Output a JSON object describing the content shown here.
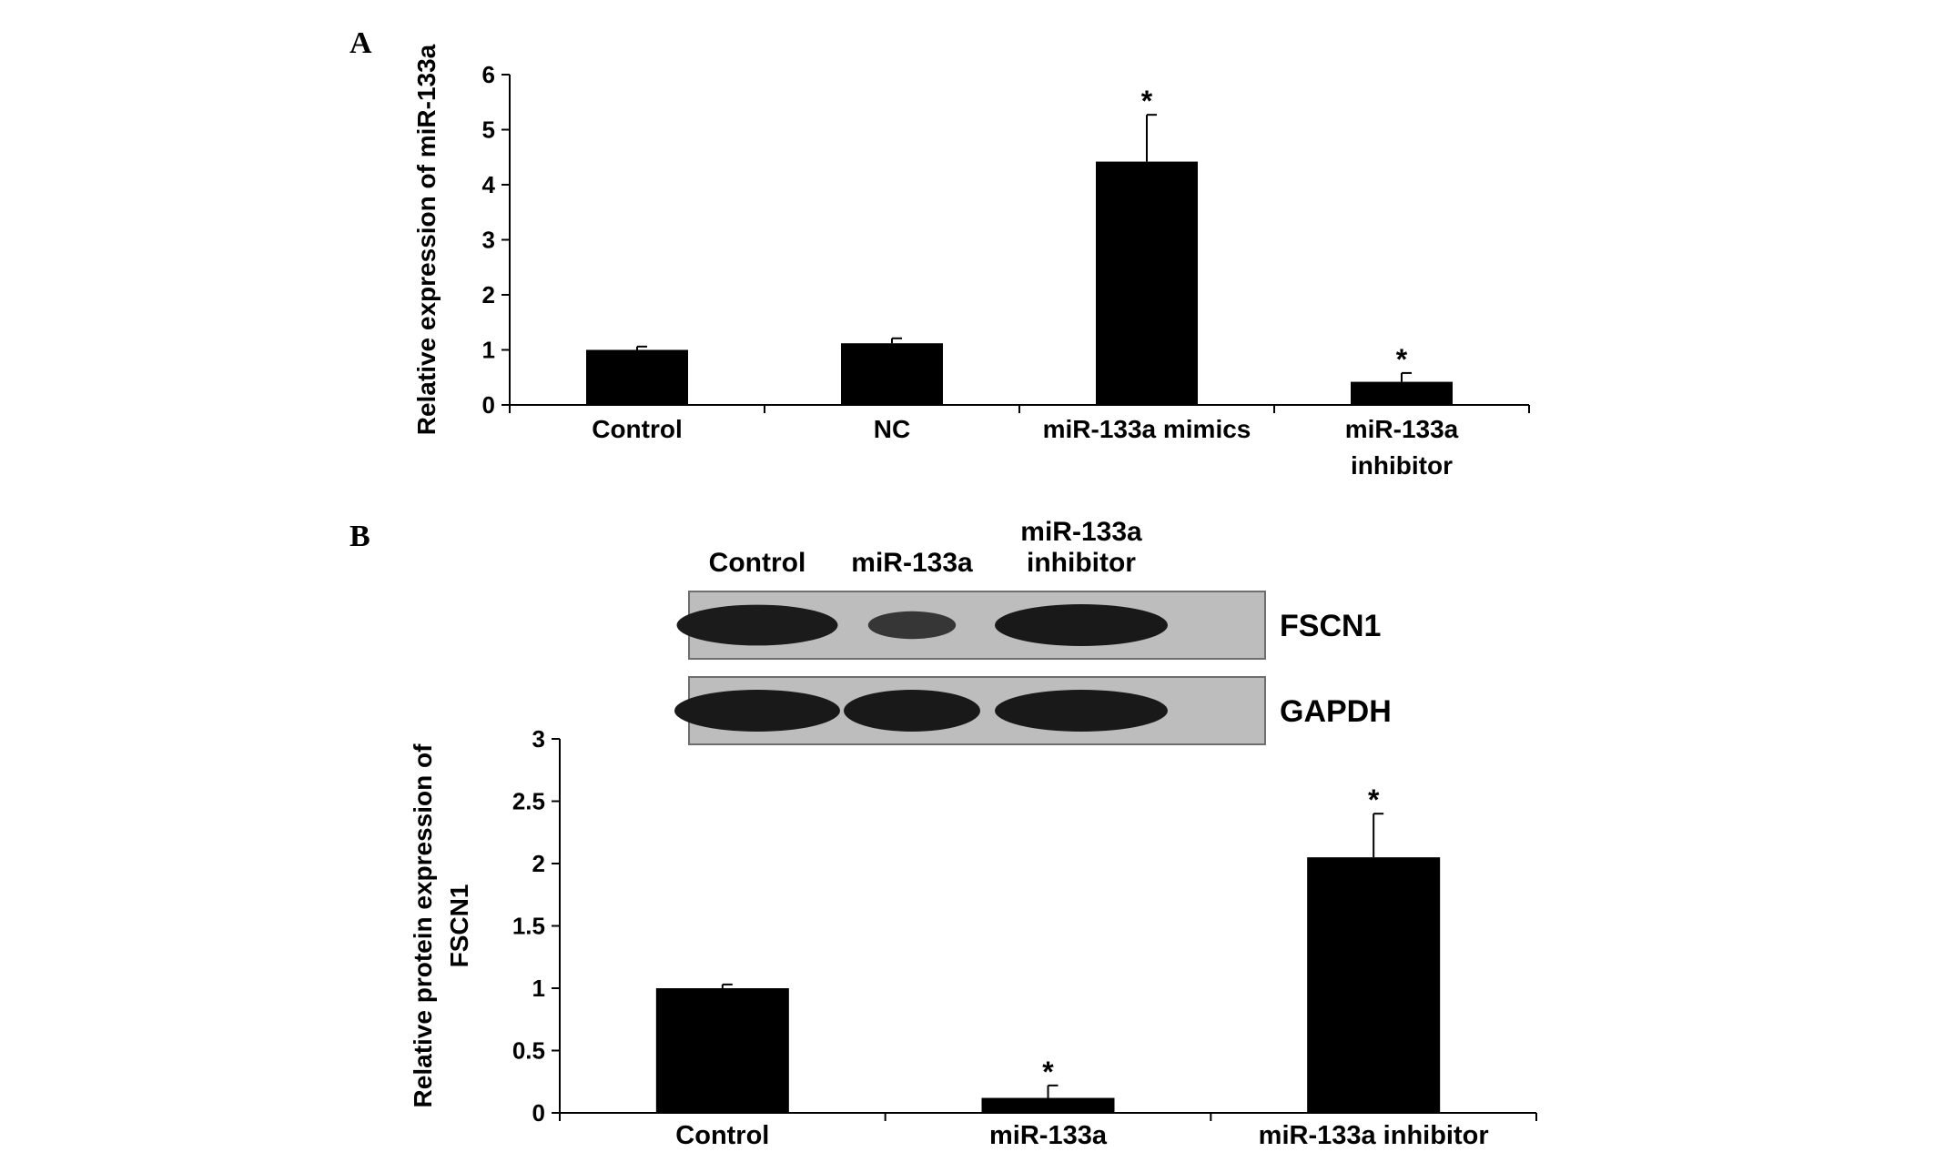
{
  "panels": {
    "a": "A",
    "b": "B"
  },
  "chart_data": [
    {
      "type": "bar",
      "panel": "A",
      "title": "",
      "ylabel": "Relative expression of miR-133a",
      "xlabel": "",
      "categories": [
        "Control",
        "NC",
        "miR-133a mimics",
        "miR-133a inhibitor"
      ],
      "category_lines": [
        [
          "Control"
        ],
        [
          "NC"
        ],
        [
          "miR-133a mimics"
        ],
        [
          "miR-133a",
          "inhibitor"
        ]
      ],
      "values": [
        1.0,
        1.12,
        4.42,
        0.42
      ],
      "errors": [
        0.06,
        0.09,
        0.85,
        0.16
      ],
      "significance": [
        "",
        "",
        "*",
        "*"
      ],
      "ylim": [
        0,
        6
      ],
      "yticks": [
        0,
        1,
        2,
        3,
        4,
        5,
        6
      ],
      "ytick_labels": [
        "0",
        "1",
        "2",
        "3",
        "4",
        "5",
        "6"
      ],
      "bar_color": "#000000",
      "grid": false,
      "legend": "none"
    },
    {
      "type": "bar",
      "panel": "B",
      "title": "",
      "ylabel": "Relative protein expression of FSCN1",
      "ylabel_lines": [
        "Relative protein expression of",
        "FSCN1"
      ],
      "xlabel": "",
      "categories": [
        "Control",
        "miR-133a",
        "miR-133a inhibitor"
      ],
      "category_lines": [
        [
          "Control"
        ],
        [
          "miR-133a"
        ],
        [
          "miR-133a inhibitor"
        ]
      ],
      "values": [
        1.0,
        0.12,
        2.05
      ],
      "errors": [
        0.03,
        0.1,
        0.35
      ],
      "significance": [
        "",
        "*",
        "*"
      ],
      "ylim": [
        0,
        3
      ],
      "yticks": [
        0,
        0.5,
        1,
        1.5,
        2,
        2.5,
        3
      ],
      "ytick_labels": [
        "0",
        "0.5",
        "1",
        "1.5",
        "2",
        "2.5",
        "3"
      ],
      "bar_color": "#000000",
      "grid": false,
      "legend": "none"
    }
  ],
  "blot": {
    "lanes": [
      [
        "Control"
      ],
      [
        "miR-133a"
      ],
      [
        "miR-133a",
        "inhibitor"
      ]
    ],
    "rows": [
      {
        "label": "FSCN1",
        "intensity": [
          0.95,
          0.35,
          1.0
        ]
      },
      {
        "label": "GAPDH",
        "intensity": [
          1.0,
          1.0,
          1.0
        ]
      }
    ]
  }
}
